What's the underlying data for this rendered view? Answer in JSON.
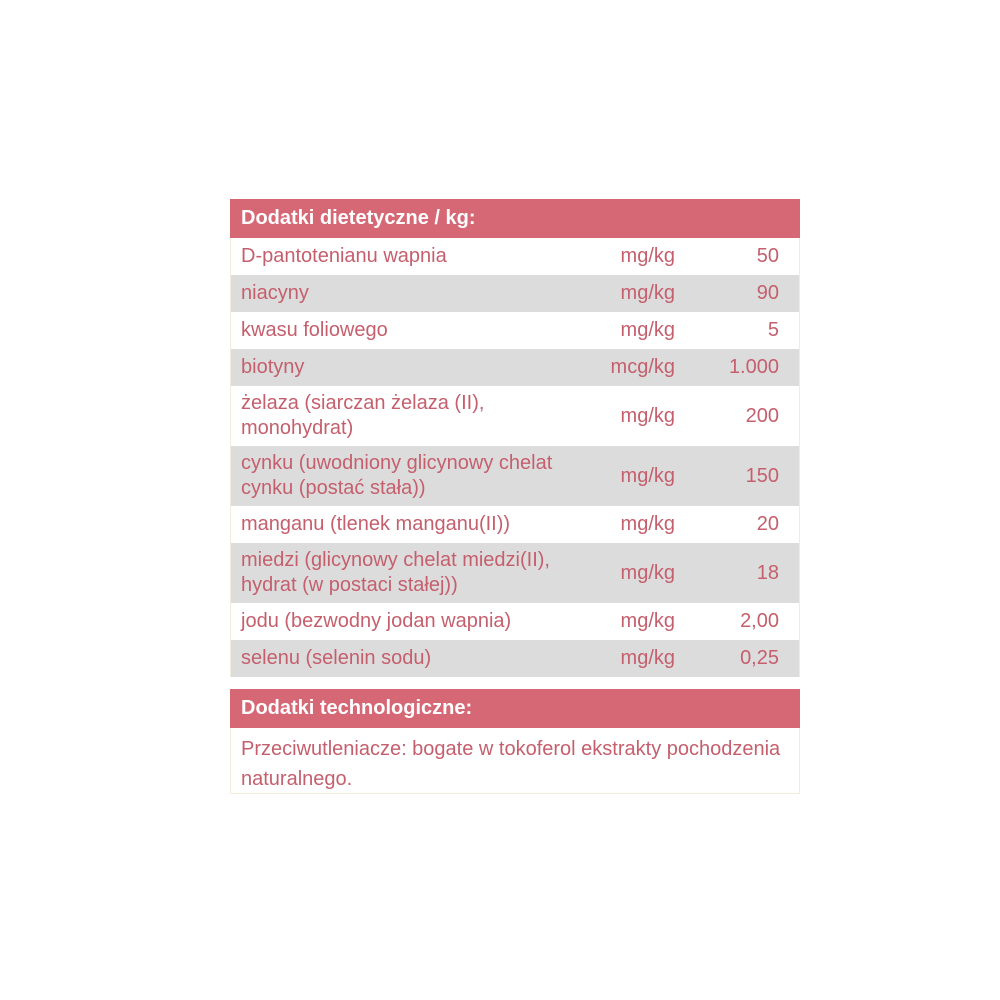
{
  "section1": {
    "title": "Dodatki dietetyczne / kg:",
    "rows": [
      {
        "name": "D-pantotenianu wapnia",
        "unit": "mg/kg",
        "value": "50"
      },
      {
        "name": "niacyny",
        "unit": "mg/kg",
        "value": "90"
      },
      {
        "name": "kwasu foliowego",
        "unit": "mg/kg",
        "value": "5"
      },
      {
        "name": "biotyny",
        "unit": "mcg/kg",
        "value": "1.000"
      },
      {
        "name": "żelaza (siarczan żelaza (II), monohydrat)",
        "unit": "mg/kg",
        "value": "200"
      },
      {
        "name": "cynku (uwodniony glicynowy chelat cynku (postać stała))",
        "unit": "mg/kg",
        "value": "150"
      },
      {
        "name": "manganu (tlenek manganu(II))",
        "unit": "mg/kg",
        "value": "20"
      },
      {
        "name": "miedzi (glicynowy chelat miedzi(II), hydrat (w postaci stałej))",
        "unit": "mg/kg",
        "value": "18"
      },
      {
        "name": "jodu (bezwodny jodan wapnia)",
        "unit": "mg/kg",
        "value": "2,00"
      },
      {
        "name": "selenu (selenin sodu)",
        "unit": "mg/kg",
        "value": "0,25"
      }
    ]
  },
  "section2": {
    "title": "Dodatki technologiczne:",
    "text": "Przeciwutleniacze: bogate w tokoferol ekstrakty pochodzenia naturalnego."
  },
  "colors": {
    "header_bg": "#d66775",
    "text": "#c55f6d",
    "row_gray": "#dcdcdc"
  }
}
